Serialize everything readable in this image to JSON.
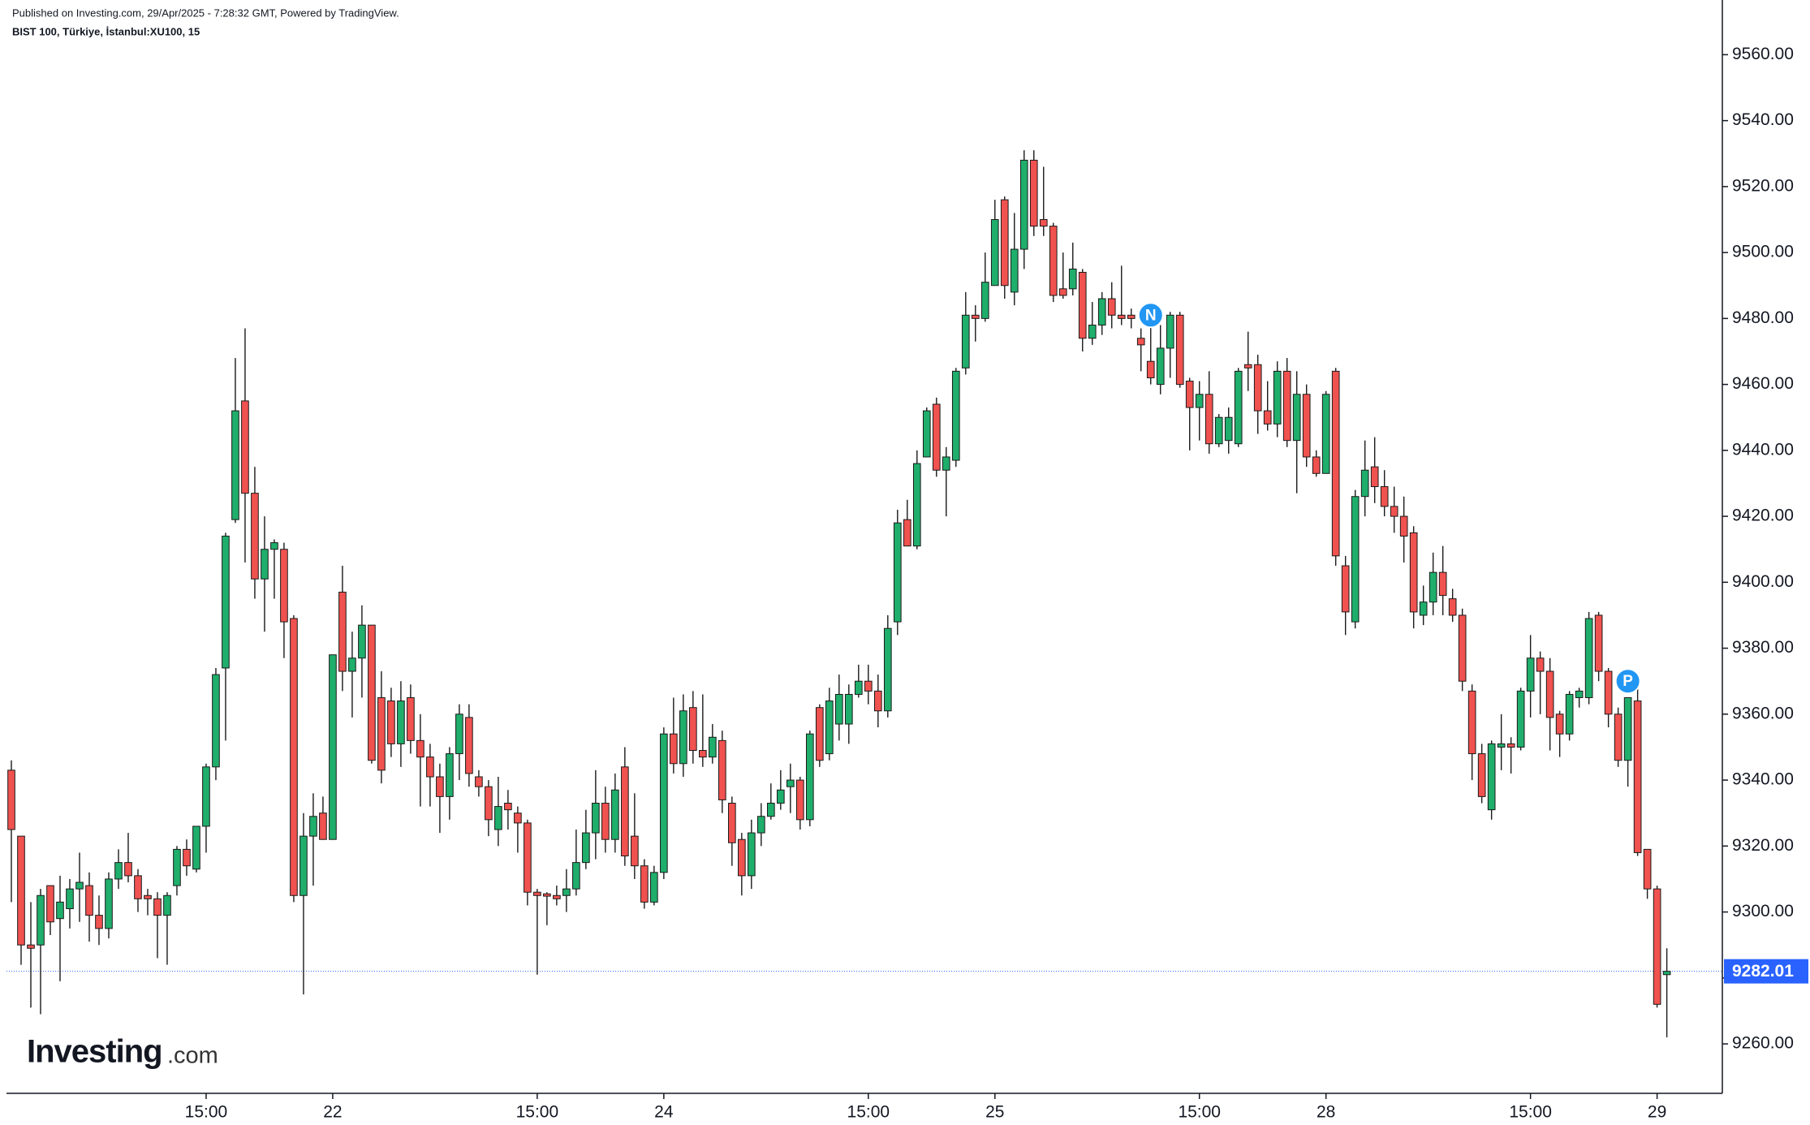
{
  "header": {
    "published": "Published on Investing.com, 29/Apr/2025 - 7:28:32 GMT, Powered by TradingView.",
    "symbol": "BIST 100, Türkiye, İstanbul:XU100, 15"
  },
  "logo": {
    "brand": "Investing",
    "suffix": ".com"
  },
  "chart_data": {
    "type": "candlestick",
    "up_color": "#1fae6b",
    "down_color": "#f0524f",
    "last_price": 9282.01,
    "last_price_color": "#2962ff",
    "xlim": [
      -0.5,
      175.7
    ],
    "ylim": [
      9245,
      9566
    ],
    "xticks": [
      {
        "value": 20,
        "label": "15:00"
      },
      {
        "value": 33,
        "label": "22"
      },
      {
        "value": 54,
        "label": "15:00"
      },
      {
        "value": 67,
        "label": "24"
      },
      {
        "value": 88,
        "label": "15:00"
      },
      {
        "value": 101,
        "label": "25"
      },
      {
        "value": 122,
        "label": "15:00"
      },
      {
        "value": 135,
        "label": "28"
      },
      {
        "value": 156,
        "label": "15:00"
      },
      {
        "value": 169,
        "label": "29"
      }
    ],
    "yticks": [
      {
        "value": 9260,
        "label": "9260.00"
      },
      {
        "value": 9280,
        "label": "9280.00"
      },
      {
        "value": 9300,
        "label": "9300.00"
      },
      {
        "value": 9320,
        "label": "9320.00"
      },
      {
        "value": 9340,
        "label": "9340.00"
      },
      {
        "value": 9360,
        "label": "9360.00"
      },
      {
        "value": 9380,
        "label": "9380.00"
      },
      {
        "value": 9400,
        "label": "9400.00"
      },
      {
        "value": 9420,
        "label": "9420.00"
      },
      {
        "value": 9440,
        "label": "9440.00"
      },
      {
        "value": 9460,
        "label": "9460.00"
      },
      {
        "value": 9480,
        "label": "9480.00"
      },
      {
        "value": 9500,
        "label": "9500.00"
      },
      {
        "value": 9520,
        "label": "9520.00"
      },
      {
        "value": 9540,
        "label": "9540.00"
      },
      {
        "value": 9560,
        "label": "9560.00"
      }
    ],
    "annotations": [
      {
        "text": "N",
        "x": 117,
        "y": 9481
      },
      {
        "text": "P",
        "x": 166,
        "y": 9370
      }
    ],
    "x": [
      0,
      1,
      2,
      3,
      4,
      5,
      6,
      7,
      8,
      9,
      10,
      11,
      12,
      13,
      14,
      15,
      16,
      17,
      18,
      19,
      20,
      21,
      22,
      23,
      24,
      25,
      26,
      27,
      28,
      29,
      30,
      31,
      32,
      33,
      34,
      35,
      36,
      37,
      38,
      39,
      40,
      41,
      42,
      43,
      44,
      45,
      46,
      47,
      48,
      49,
      50,
      51,
      52,
      53,
      54,
      55,
      56,
      57,
      58,
      59,
      60,
      61,
      62,
      63,
      64,
      65,
      66,
      67,
      68,
      69,
      70,
      71,
      72,
      73,
      74,
      75,
      76,
      77,
      78,
      79,
      80,
      81,
      82,
      83,
      84,
      85,
      86,
      87,
      88,
      89,
      90,
      91,
      92,
      93,
      94,
      95,
      96,
      97,
      98,
      99,
      100,
      101,
      102,
      103,
      104,
      105,
      106,
      107,
      108,
      109,
      110,
      111,
      112,
      113,
      114,
      115,
      116,
      117,
      118,
      119,
      120,
      121,
      122,
      123,
      124,
      125,
      126,
      127,
      128,
      129,
      130,
      131,
      132,
      133,
      134,
      135,
      136,
      137,
      138,
      139,
      140,
      141,
      142,
      143,
      144,
      145,
      146,
      147,
      148,
      149,
      150,
      151,
      152,
      153,
      154,
      155,
      156,
      157,
      158,
      159,
      160,
      161,
      162,
      163,
      164,
      165,
      166,
      167,
      168,
      169,
      170
    ],
    "open": [
      9343,
      9323,
      9290,
      9290,
      9308,
      9298,
      9301,
      9307,
      9308,
      9299,
      9295,
      9310,
      9315,
      9311,
      9305,
      9304,
      9299,
      9308,
      9319,
      9313,
      9326,
      9344,
      9374,
      9419,
      9455,
      9427,
      9401,
      9410,
      9410,
      9389,
      9305,
      9323,
      9330,
      9322,
      9397,
      9373,
      9377,
      9387,
      9365,
      9364,
      9351,
      9365,
      9352,
      9347,
      9341,
      9335,
      9348,
      9359,
      9341,
      9338,
      9325,
      9333,
      9330,
      9327,
      9306,
      9305.5,
      9305,
      9305,
      9307,
      9315,
      9324,
      9333,
      9322,
      9344,
      9323,
      9314,
      9303,
      9312,
      9354,
      9345,
      9362,
      9349,
      9347,
      9352,
      9333,
      9322,
      9311,
      9324,
      9329,
      9333,
      9338,
      9340,
      9328,
      9362,
      9348,
      9357,
      9357,
      9366,
      9370,
      9367,
      9361,
      9388,
      9419,
      9411,
      9438,
      9454,
      9434,
      9437,
      9465,
      9481,
      9480,
      9490,
      9516,
      9488,
      9501,
      9528,
      9510,
      9508,
      9489,
      9489,
      9494,
      9474,
      9478,
      9486,
      9481,
      9481,
      9474,
      9467,
      9460,
      9471,
      9481,
      9461,
      9453,
      9457,
      9442,
      9443,
      9442,
      9466,
      9466,
      9452,
      9448,
      9464,
      9443,
      9457,
      9438,
      9433,
      9464,
      9405,
      9388,
      9426,
      9435,
      9429,
      9423,
      9420,
      9415,
      9390,
      9394,
      9403,
      9395,
      9390,
      9367,
      9348,
      9331,
      9350,
      9351,
      9350,
      9367,
      9377,
      9373,
      9360,
      9354,
      9365,
      9365,
      9390,
      9373,
      9360,
      9346,
      9364,
      9319,
      9307,
      9281
    ],
    "high": [
      9346,
      9323,
      9303,
      9307,
      9308,
      9311,
      9310,
      9318,
      9312,
      9305,
      9312,
      9319,
      9324,
      9313,
      9307,
      9306,
      9306,
      9320,
      9322,
      9326,
      9345,
      9374,
      9415,
      9468,
      9477,
      9435,
      9420,
      9413,
      9412,
      9390,
      9330,
      9336,
      9335,
      9378,
      9405,
      9385,
      9393,
      9387,
      9373,
      9368,
      9370,
      9369,
      9360,
      9351,
      9345,
      9350,
      9363,
      9363,
      9343,
      9340,
      9341,
      9337,
      9332,
      9328,
      9307,
      9306,
      9308,
      9313,
      9325,
      9331,
      9343,
      9338,
      9342,
      9350,
      9336,
      9316,
      9314,
      9356,
      9365,
      9366,
      9367,
      9366,
      9357,
      9355,
      9335,
      9324,
      9328,
      9333,
      9339,
      9343,
      9345,
      9341,
      9355,
      9363,
      9368,
      9372,
      9369,
      9375,
      9375,
      9372,
      9390,
      9422,
      9425,
      9440,
      9453,
      9456,
      9441,
      9465,
      9488,
      9484,
      9500,
      9516,
      9517,
      9512,
      9531,
      9531,
      9526,
      9509,
      9500,
      9503,
      9495,
      9485,
      9488,
      9491,
      9496,
      9483,
      9477,
      9480,
      9478,
      9482,
      9482,
      9462,
      9461,
      9464,
      9451,
      9453,
      9465,
      9476,
      9469,
      9461,
      9467,
      9468,
      9464,
      9460,
      9440,
      9458,
      9465,
      9408,
      9428,
      9443,
      9444,
      9434,
      9429,
      9426,
      9417,
      9399,
      9409,
      9411,
      9398,
      9392,
      9369,
      9351,
      9352,
      9360,
      9353,
      9368,
      9384,
      9379,
      9377,
      9361,
      9367,
      9368,
      9391,
      9391,
      9374,
      9362,
      9365,
      9369,
      9319,
      9308,
      9289
    ],
    "low": [
      9303,
      9284,
      9271,
      9269,
      9293,
      9279,
      9295,
      9297,
      9291,
      9290,
      9292,
      9307,
      9309,
      9300,
      9299,
      9286,
      9284,
      9305,
      9311,
      9312,
      9318,
      9340,
      9352,
      9418,
      9406,
      9395,
      9385,
      9395,
      9377,
      9303,
      9275,
      9308,
      9322,
      9322,
      9367,
      9359,
      9365,
      9345,
      9339,
      9347,
      9344,
      9348,
      9332,
      9332,
      9324,
      9328,
      9340,
      9338,
      9335,
      9323,
      9320,
      9325,
      9318,
      9302,
      9281,
      9296,
      9302,
      9300,
      9305,
      9313,
      9316,
      9318,
      9318,
      9314,
      9310,
      9301,
      9302,
      9310,
      9342,
      9341,
      9345,
      9344,
      9345,
      9330,
      9314,
      9305,
      9307,
      9320,
      9328,
      9331,
      9330,
      9325,
      9326,
      9344,
      9346,
      9352,
      9351,
      9365,
      9363,
      9356,
      9359,
      9384,
      9411,
      9410,
      9438,
      9432,
      9420,
      9435,
      9463,
      9473,
      9479,
      9490,
      9486,
      9484,
      9495,
      9505,
      9505,
      9485,
      9486,
      9487,
      9470,
      9472,
      9475,
      9477,
      9478,
      9477,
      9464,
      9460,
      9457,
      9462,
      9459,
      9440,
      9443,
      9439,
      9441,
      9439,
      9441,
      9458,
      9445,
      9446,
      9444,
      9441,
      9427,
      9435,
      9432,
      9433,
      9405,
      9384,
      9386,
      9420,
      9424,
      9420,
      9415,
      9406,
      9386,
      9387,
      9390,
      9390,
      9388,
      9367,
      9340,
      9333,
      9328,
      9343,
      9342,
      9349,
      9359,
      9360,
      9349,
      9347,
      9352,
      9362,
      9363,
      9370,
      9356,
      9344,
      9338,
      9317,
      9304,
      9271,
      9262
    ],
    "close": [
      9325,
      9290,
      9289,
      9305,
      9297,
      9303,
      9307,
      9309,
      9299,
      9295,
      9310,
      9315,
      9311,
      9304,
      9304,
      9299,
      9305,
      9319,
      9314,
      9326,
      9344,
      9372,
      9414,
      9452,
      9427,
      9401,
      9410,
      9412,
      9388,
      9305,
      9323,
      9329,
      9322,
      9378,
      9373,
      9377,
      9387,
      9346,
      9343,
      9351,
      9364,
      9352,
      9347,
      9341,
      9335,
      9348,
      9360,
      9342,
      9338,
      9328,
      9332,
      9331,
      9327,
      9306,
      9305,
      9304.8,
      9304,
      9307,
      9315,
      9324,
      9333,
      9322,
      9337,
      9317,
      9314,
      9303,
      9312,
      9354,
      9345,
      9361,
      9349,
      9347,
      9353,
      9334,
      9321,
      9311,
      9324,
      9329,
      9333,
      9337,
      9340,
      9328,
      9354,
      9346,
      9364,
      9366,
      9366,
      9370,
      9367,
      9361,
      9386,
      9418,
      9411,
      9436,
      9452,
      9434,
      9438,
      9464,
      9481,
      9480,
      9491,
      9510,
      9490,
      9501,
      9528,
      9508,
      9508,
      9487,
      9487,
      9495,
      9474,
      9478,
      9486,
      9481,
      9480,
      9480,
      9472,
      9462,
      9471,
      9481,
      9460,
      9453,
      9457,
      9442,
      9450,
      9450,
      9464,
      9465,
      9452,
      9448,
      9464,
      9443,
      9457,
      9438,
      9433,
      9457,
      9408,
      9391,
      9426,
      9434,
      9429,
      9423,
      9420,
      9414,
      9391,
      9394,
      9403,
      9396,
      9390,
      9370,
      9348,
      9335,
      9351,
      9351,
      9350,
      9367,
      9377,
      9373,
      9359,
      9354,
      9366,
      9367,
      9389,
      9373,
      9360,
      9346,
      9365,
      9318,
      9307,
      9272,
      9282.01
    ]
  }
}
